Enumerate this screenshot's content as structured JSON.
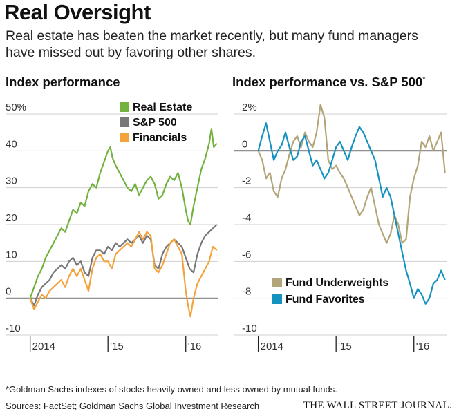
{
  "header": {
    "title": "Real Oversight",
    "subtitle": "Real estate has beaten the market recently, but many fund managers have missed out by favoring other shares."
  },
  "footer": {
    "footnote": "*Goldman Sachs indexes of stocks heavily owned and less owned by mutual funds.",
    "sources": "Sources: FactSet; Goldman Sachs Global Investment Research",
    "publisher": "THE WALL STREET JOURNAL."
  },
  "chart_data": [
    {
      "type": "line",
      "title": "Index performance",
      "ylim": [
        -10,
        50
      ],
      "yticks": [
        "50%",
        "40",
        "30",
        "20",
        "10",
        "0",
        "-10"
      ],
      "yvalues": [
        50,
        40,
        30,
        20,
        10,
        0,
        -10
      ],
      "xlim": [
        2013.95,
        2016.42
      ],
      "xticks": [
        "2014",
        "'15",
        "'16"
      ],
      "xtick_positions": [
        2014.0,
        2015.0,
        2016.0
      ],
      "legend_position": "top-right",
      "series": [
        {
          "name": "Real Estate",
          "color": "#72b23e",
          "x": [
            2014.0,
            2014.05,
            2014.1,
            2014.15,
            2014.2,
            2014.25,
            2014.3,
            2014.35,
            2014.4,
            2014.45,
            2014.5,
            2014.55,
            2014.6,
            2014.65,
            2014.7,
            2014.75,
            2014.8,
            2014.85,
            2014.9,
            2014.95,
            2015.0,
            2015.03,
            2015.06,
            2015.1,
            2015.15,
            2015.2,
            2015.25,
            2015.3,
            2015.35,
            2015.4,
            2015.45,
            2015.5,
            2015.55,
            2015.6,
            2015.65,
            2015.7,
            2015.75,
            2015.8,
            2015.85,
            2015.9,
            2015.95,
            2016.0,
            2016.03,
            2016.06,
            2016.1,
            2016.15,
            2016.2,
            2016.25,
            2016.3,
            2016.33,
            2016.36,
            2016.4
          ],
          "values": [
            0,
            3,
            6,
            8,
            11,
            13,
            15,
            17,
            19,
            18,
            21,
            24,
            23,
            26,
            25,
            29,
            31,
            30,
            34,
            37,
            40,
            41,
            38,
            36,
            34,
            32,
            30,
            29,
            31,
            28,
            30,
            32,
            33,
            31,
            27,
            28,
            31,
            33,
            32,
            34,
            30,
            24,
            21,
            20,
            25,
            30,
            35,
            38,
            42,
            46,
            41,
            42
          ]
        },
        {
          "name": "S&P 500",
          "color": "#777777",
          "x": [
            2014.0,
            2014.05,
            2014.1,
            2014.15,
            2014.2,
            2014.25,
            2014.3,
            2014.35,
            2014.4,
            2014.45,
            2014.5,
            2014.55,
            2014.6,
            2014.65,
            2014.7,
            2014.75,
            2014.8,
            2014.85,
            2014.9,
            2014.95,
            2015.0,
            2015.05,
            2015.1,
            2015.15,
            2015.2,
            2015.25,
            2015.3,
            2015.35,
            2015.4,
            2015.45,
            2015.5,
            2015.55,
            2015.6,
            2015.65,
            2015.7,
            2015.75,
            2015.8,
            2015.85,
            2015.9,
            2015.95,
            2016.0,
            2016.05,
            2016.1,
            2016.15,
            2016.2,
            2016.25,
            2016.3,
            2016.35,
            2016.4
          ],
          "values": [
            0,
            -2,
            1,
            3,
            4,
            5,
            7,
            8,
            9,
            8,
            10,
            11,
            9,
            10,
            7,
            6,
            11,
            13,
            13,
            12,
            14,
            13,
            15,
            14,
            15,
            16,
            15,
            16,
            17,
            15,
            17,
            16,
            9,
            8,
            12,
            14,
            15,
            16,
            15,
            14,
            11,
            8,
            7,
            12,
            15,
            17,
            18,
            19,
            20
          ]
        },
        {
          "name": "Financials",
          "color": "#f3a33c",
          "x": [
            2014.0,
            2014.05,
            2014.1,
            2014.15,
            2014.2,
            2014.25,
            2014.3,
            2014.35,
            2014.4,
            2014.45,
            2014.5,
            2014.55,
            2014.6,
            2014.65,
            2014.7,
            2014.75,
            2014.8,
            2014.85,
            2014.9,
            2014.95,
            2015.0,
            2015.05,
            2015.1,
            2015.15,
            2015.2,
            2015.25,
            2015.3,
            2015.35,
            2015.4,
            2015.45,
            2015.5,
            2015.55,
            2015.6,
            2015.65,
            2015.7,
            2015.75,
            2015.8,
            2015.85,
            2015.9,
            2015.95,
            2016.0,
            2016.03,
            2016.06,
            2016.1,
            2016.15,
            2016.2,
            2016.25,
            2016.3,
            2016.35,
            2016.4
          ],
          "values": [
            0,
            -3,
            -1,
            1,
            0,
            2,
            3,
            4,
            5,
            3,
            6,
            8,
            6,
            8,
            5,
            2,
            8,
            11,
            12,
            10,
            10,
            8,
            12,
            13,
            14,
            15,
            14,
            16,
            18,
            16,
            18,
            17,
            8,
            7,
            9,
            12,
            15,
            16,
            14,
            12,
            2,
            -2,
            -5,
            0,
            4,
            6,
            8,
            10,
            14,
            13
          ]
        }
      ]
    },
    {
      "type": "line",
      "title": "Index performance vs. S&P 500",
      "title_mark": "*",
      "ylim": [
        -10,
        2
      ],
      "yticks": [
        "2%",
        "0",
        "-2",
        "-4",
        "-6",
        "-8",
        "-10"
      ],
      "yvalues": [
        2,
        0,
        -2,
        -4,
        -6,
        -8,
        -10
      ],
      "xlim": [
        2013.95,
        2016.42
      ],
      "xticks": [
        "2014",
        "'15",
        "'16"
      ],
      "xtick_positions": [
        2014.0,
        2015.0,
        2016.0
      ],
      "legend_position": "bottom-right",
      "series": [
        {
          "name": "Fund Underweights",
          "color": "#b2a577",
          "x": [
            2014.0,
            2014.05,
            2014.1,
            2014.15,
            2014.2,
            2014.25,
            2014.3,
            2014.35,
            2014.4,
            2014.45,
            2014.5,
            2014.55,
            2014.6,
            2014.65,
            2014.7,
            2014.75,
            2014.8,
            2014.85,
            2014.9,
            2014.95,
            2015.0,
            2015.05,
            2015.1,
            2015.15,
            2015.2,
            2015.25,
            2015.3,
            2015.35,
            2015.4,
            2015.45,
            2015.5,
            2015.55,
            2015.6,
            2015.65,
            2015.7,
            2015.75,
            2015.8,
            2015.85,
            2015.9,
            2015.95,
            2016.0,
            2016.05,
            2016.1,
            2016.15,
            2016.2,
            2016.25,
            2016.3,
            2016.35,
            2016.4
          ],
          "values": [
            0,
            -0.5,
            -1.5,
            -1.2,
            -2.2,
            -2.5,
            -1.5,
            -1.0,
            -0.2,
            0.5,
            0.8,
            0.2,
            1.0,
            0.5,
            0.2,
            1.0,
            2.5,
            1.8,
            -0.5,
            -1.0,
            -0.8,
            -1.2,
            -1.5,
            -2.0,
            -2.5,
            -3.0,
            -3.5,
            -3.2,
            -2.5,
            -2.0,
            -3.0,
            -4.0,
            -4.5,
            -5.0,
            -4.5,
            -3.5,
            -4.0,
            -5.0,
            -4.8,
            -2.5,
            -1.5,
            -0.8,
            0.5,
            0.2,
            0.8,
            0.0,
            0.5,
            1.0,
            -1.2
          ]
        },
        {
          "name": "Fund Favorites",
          "color": "#1592c0",
          "x": [
            2014.0,
            2014.05,
            2014.1,
            2014.15,
            2014.2,
            2014.25,
            2014.3,
            2014.35,
            2014.4,
            2014.45,
            2014.5,
            2014.55,
            2014.6,
            2014.65,
            2014.7,
            2014.75,
            2014.8,
            2014.85,
            2014.9,
            2014.95,
            2015.0,
            2015.05,
            2015.1,
            2015.15,
            2015.2,
            2015.25,
            2015.3,
            2015.35,
            2015.4,
            2015.45,
            2015.5,
            2015.55,
            2015.6,
            2015.65,
            2015.7,
            2015.75,
            2015.8,
            2015.85,
            2015.9,
            2015.95,
            2016.0,
            2016.05,
            2016.1,
            2016.15,
            2016.2,
            2016.25,
            2016.3,
            2016.35,
            2016.4
          ],
          "values": [
            0,
            0.8,
            1.5,
            0.5,
            -0.5,
            0,
            0.3,
            1.0,
            0.2,
            -0.5,
            -0.3,
            0.5,
            0.8,
            0.0,
            -0.8,
            -0.5,
            -1.0,
            -1.5,
            -1.2,
            -0.5,
            0.2,
            0.5,
            0.0,
            -0.5,
            0.2,
            0.8,
            1.3,
            1.0,
            0.5,
            0.0,
            -0.5,
            -1.5,
            -2.5,
            -2.0,
            -2.5,
            -3.5,
            -4.5,
            -5.5,
            -6.5,
            -7.2,
            -8.0,
            -7.5,
            -7.8,
            -8.3,
            -8.0,
            -7.2,
            -7.0,
            -6.5,
            -7.0
          ]
        }
      ]
    }
  ]
}
